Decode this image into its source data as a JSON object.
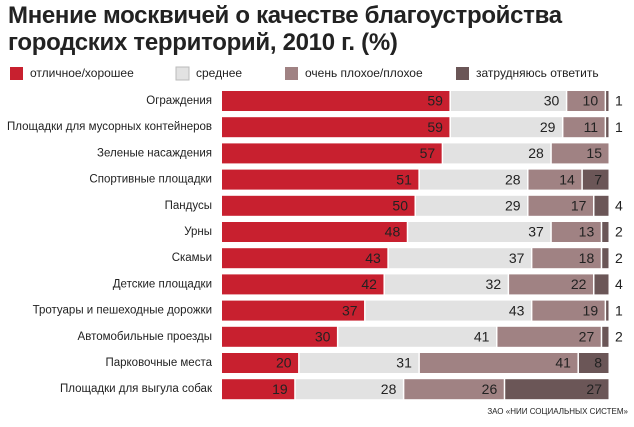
{
  "chart_data": {
    "type": "stacked-bar-horizontal",
    "title": "Мнение москвичей о качестве благоустройства городских территорий, 2010 г. (%)",
    "source": "ЗАО «НИИ СОЦИАЛЬНЫХ СИСТЕМ»",
    "categories": [
      "Ограждения",
      "Площадки для мусорных контейнеров",
      "Зеленые насаждения",
      "Спортивные площадки",
      "Пандусы",
      "Урны",
      "Скамьи",
      "Детские площадки",
      "Тротуары и пешеходные дорожки",
      "Автомобильные проезды",
      "Парковочные места",
      "Площадки для выгула собак"
    ],
    "series": [
      {
        "name": "отличное/хорошее",
        "color": "#c8202f",
        "values": [
          59,
          59,
          57,
          51,
          50,
          48,
          43,
          42,
          37,
          30,
          20,
          19
        ]
      },
      {
        "name": "среднее",
        "color": "#e2e2e2",
        "values": [
          30,
          29,
          28,
          28,
          29,
          37,
          37,
          32,
          43,
          41,
          31,
          28
        ]
      },
      {
        "name": "очень плохое/плохое",
        "color": "#a08283",
        "values": [
          10,
          11,
          15,
          14,
          17,
          13,
          18,
          22,
          19,
          27,
          41,
          26
        ]
      },
      {
        "name": "затрудняюсь ответить",
        "color": "#6b5657",
        "values": [
          1,
          1,
          null,
          7,
          4,
          2,
          2,
          4,
          1,
          2,
          8,
          27
        ]
      }
    ]
  }
}
